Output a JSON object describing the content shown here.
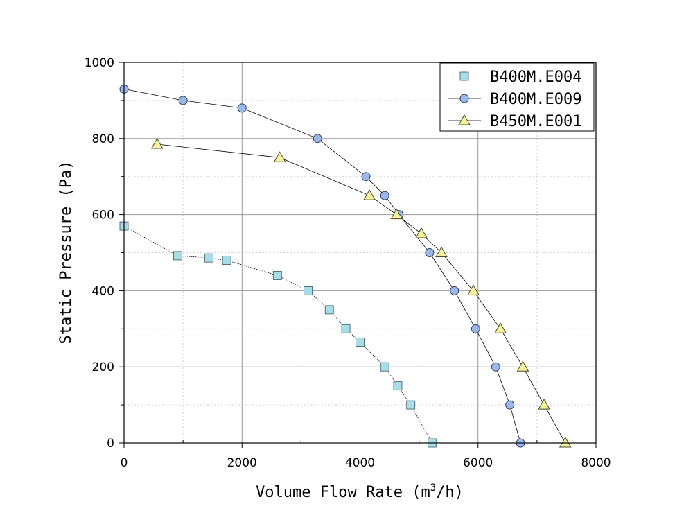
{
  "chart_data": {
    "type": "line",
    "title": "",
    "xlabel": "Volume Flow Rate (m3/h)",
    "xlabel_parts": [
      "Volume Flow Rate (m",
      "3",
      "/h)"
    ],
    "ylabel": "Static Pressure (Pa)",
    "xlim": [
      0,
      8000
    ],
    "ylim": [
      0,
      1000
    ],
    "xticks": [
      0,
      2000,
      4000,
      6000,
      8000
    ],
    "xtick_labels": [
      "0",
      "2000",
      "4000",
      "6000",
      "8000"
    ],
    "yticks": [
      0,
      200,
      400,
      600,
      800,
      1000
    ],
    "ytick_labels": [
      "0",
      "200",
      "400",
      "600",
      "800",
      "1000"
    ],
    "grid": true,
    "legend_position": "top-right",
    "series": [
      {
        "name": "B400M.E004",
        "marker": "square",
        "color": "#a8dde8",
        "line": false,
        "x": [
          0,
          910,
          1440,
          1740,
          2600,
          3120,
          3480,
          3760,
          4000,
          4420,
          4640,
          4860,
          5220
        ],
        "y": [
          570,
          492,
          486,
          480,
          440,
          400,
          350,
          300,
          265,
          200,
          150,
          100,
          0
        ]
      },
      {
        "name": "B400M.E009",
        "marker": "circle",
        "color": "#9ab8ec",
        "line": true,
        "x": [
          0,
          1000,
          2000,
          3280,
          4100,
          4420,
          4660,
          5180,
          5600,
          5960,
          6300,
          6540,
          6720
        ],
        "y": [
          930,
          900,
          880,
          800,
          700,
          650,
          600,
          500,
          400,
          300,
          200,
          100,
          0
        ]
      },
      {
        "name": "B450M.E001",
        "marker": "triangle",
        "color": "#f4f0a0",
        "line": true,
        "x": [
          560,
          2640,
          4160,
          4620,
          5040,
          5380,
          5920,
          6380,
          6760,
          7120,
          7480
        ],
        "y": [
          785,
          750,
          650,
          600,
          550,
          500,
          400,
          300,
          200,
          100,
          0
        ]
      }
    ]
  },
  "colors": {
    "line": "#000000",
    "grid_major": "#999999",
    "grid_minor": "#d0d0d0",
    "background": "#ffffff"
  }
}
